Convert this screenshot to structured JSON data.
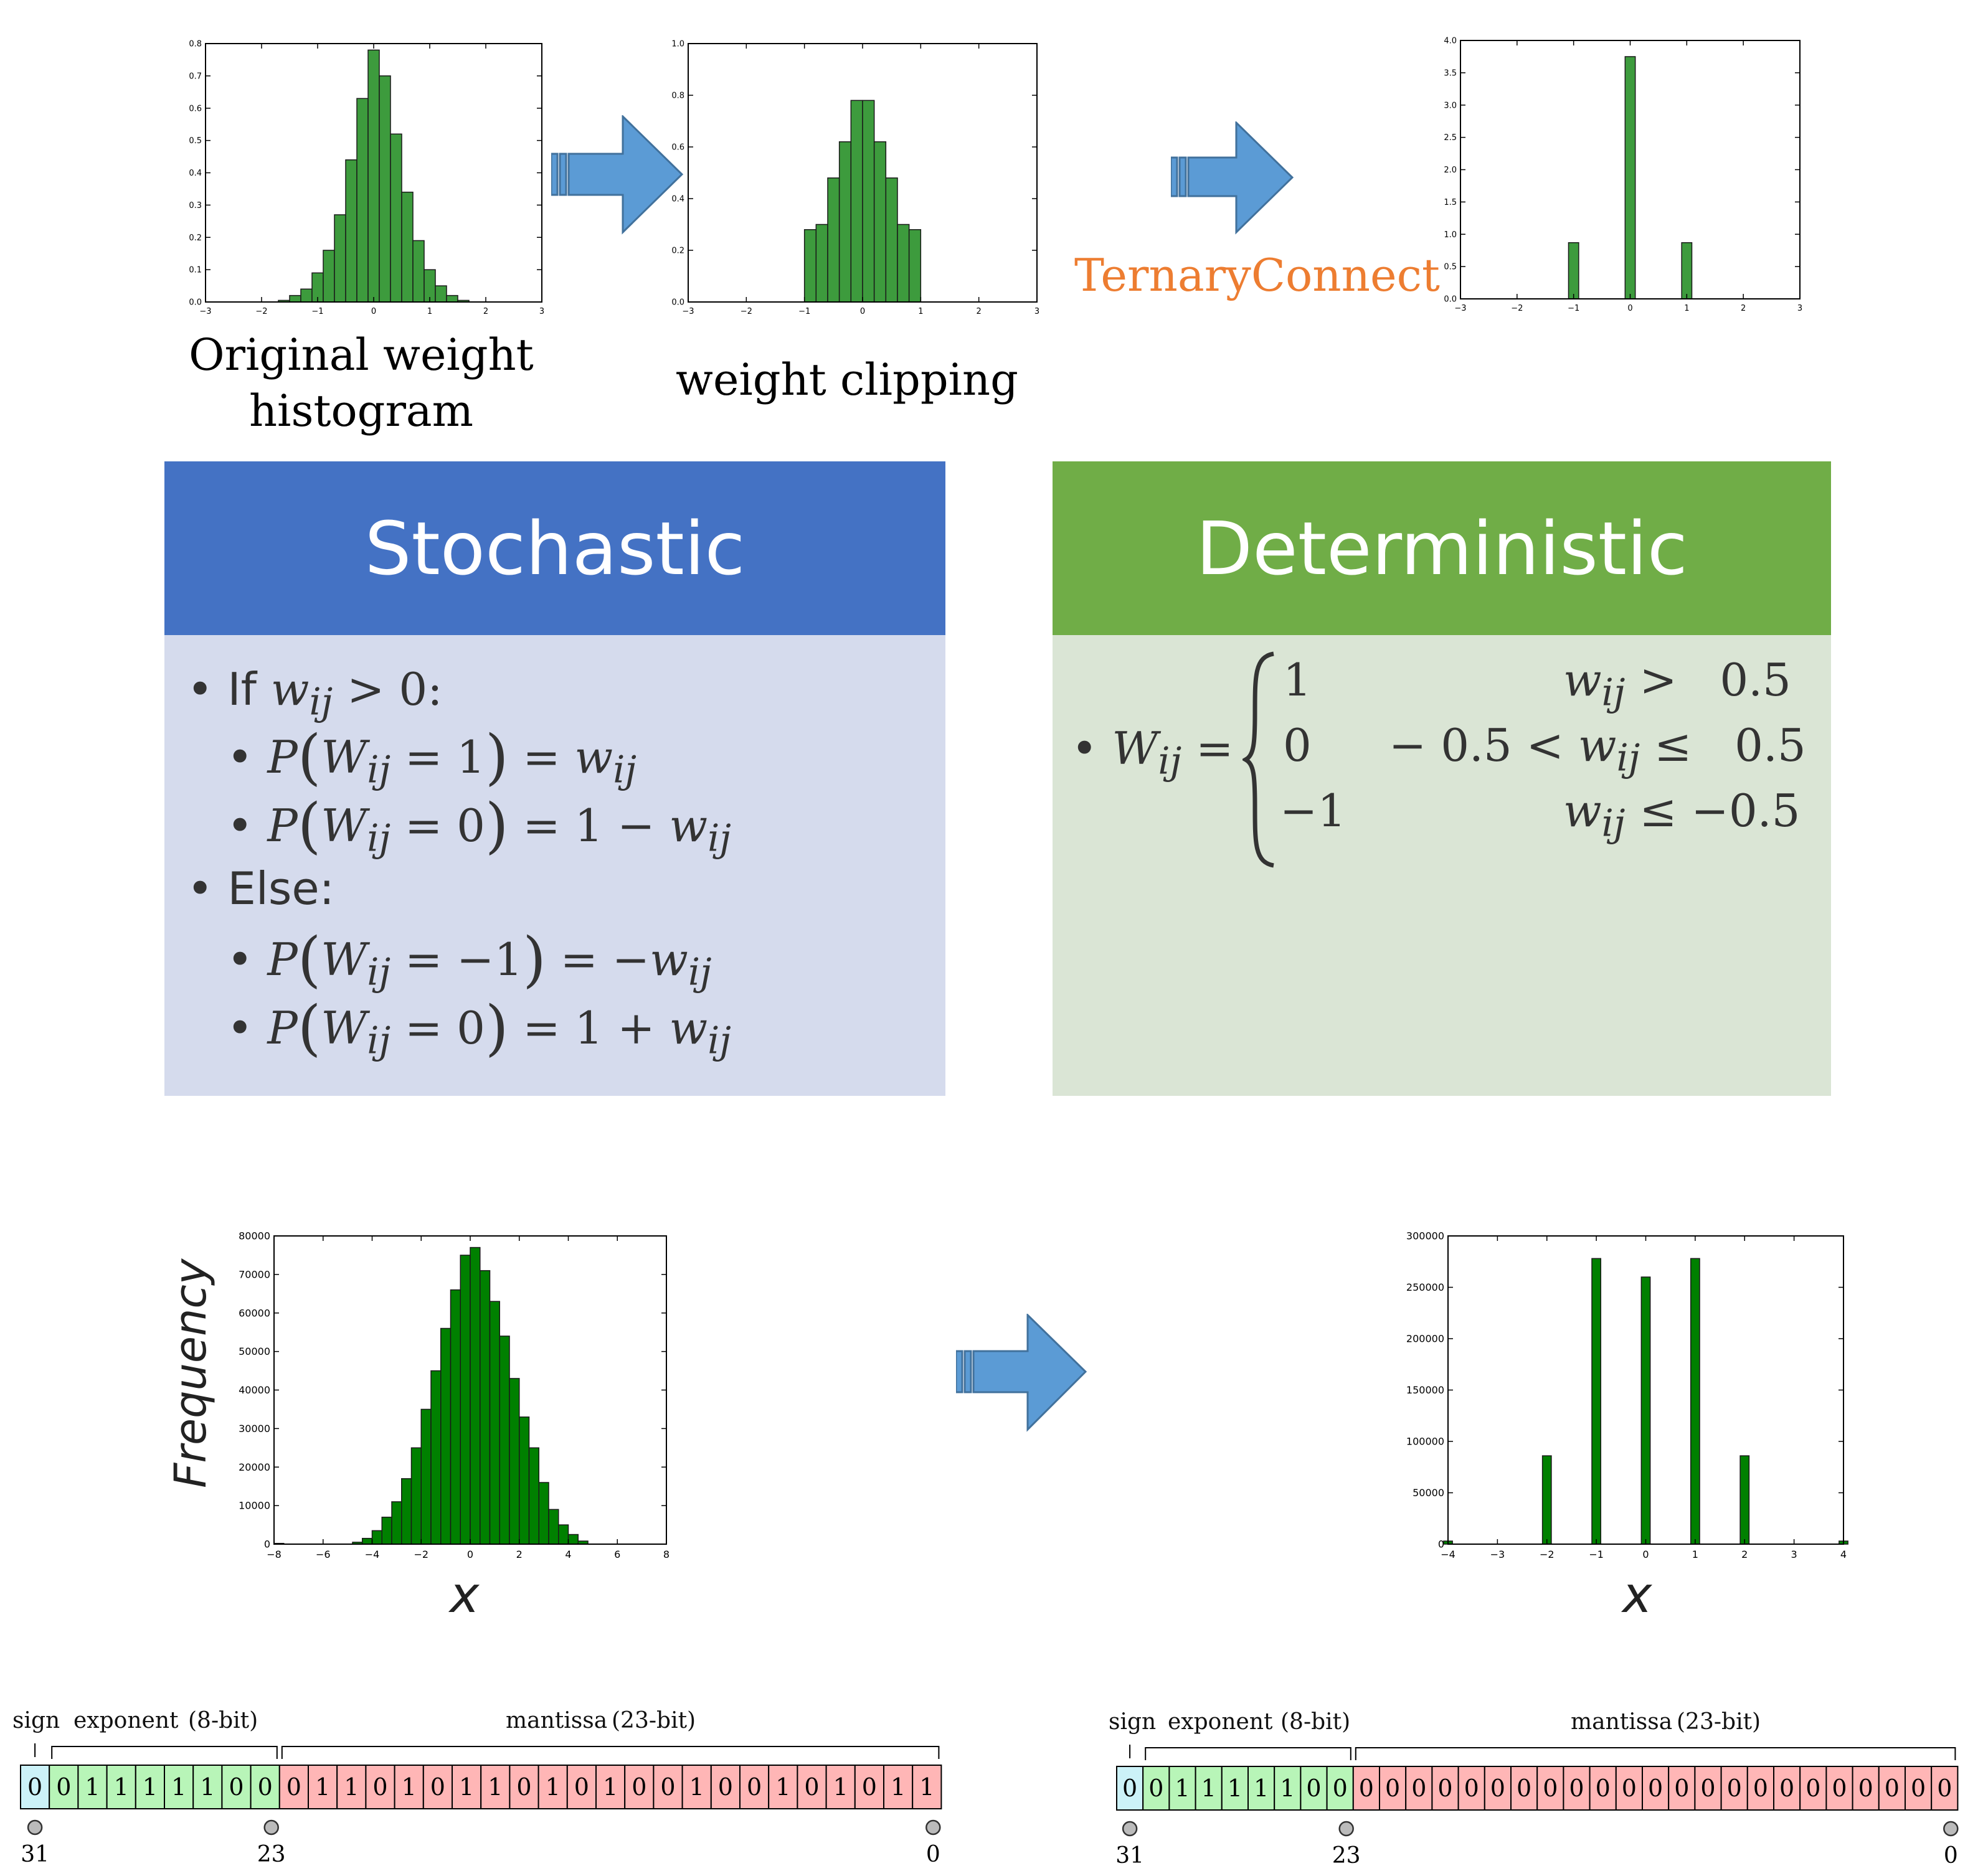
{
  "top_row": {
    "caption_original_line1": "Original weight",
    "caption_original_line2": "histogram",
    "caption_clipping": "weight clipping",
    "ternary_label": "TernaryConnect"
  },
  "stochastic": {
    "title": "Stochastic",
    "header_color": "#4472c4",
    "body_color": "#d5dbed",
    "if_text": "If",
    "if_cond": "w",
    "else_text": "Else:"
  },
  "deterministic": {
    "title": "Deterministic",
    "header_color": "#70ad47",
    "body_color": "#dae5d5",
    "cases": [
      {
        "value": "1",
        "cond": "w_ij > 0.5"
      },
      {
        "value": "0",
        "cond": "−0.5 < w_ij ≤ 0.5"
      },
      {
        "value": "−1",
        "cond": "w_ij ≤ −0.5"
      }
    ]
  },
  "bottom_row": {
    "ylabel": "Frequency",
    "xlabel_left": "x",
    "xlabel_right": "x"
  },
  "float_left": {
    "sign_label": "sign",
    "exponent_label": "exponent",
    "exponent_bits": "(8-bit)",
    "mantissa_label": "mantissa",
    "mantissa_bits": "(23-bit)",
    "bits": "00111110001101011010100100101011",
    "marker_31": "31",
    "marker_23": "23",
    "marker_0": "0"
  },
  "float_right": {
    "sign_label": "sign",
    "exponent_label": "exponent",
    "exponent_bits": "(8-bit)",
    "mantissa_label": "mantissa",
    "mantissa_bits": "(23-bit)",
    "bits": "00111110000000000000000000000000",
    "marker_31": "31",
    "marker_23": "23",
    "marker_0": "0"
  },
  "colors": {
    "bar_green_light": "#3d9b3d",
    "bar_green_dark": "#008000",
    "arrow_blue": "#5b9bd5",
    "sign_cell": "#ccf2f8",
    "exponent_cell": "#b8f5b8",
    "mantissa_cell": "#ffb6b6"
  },
  "chart_data": [
    {
      "type": "bar",
      "name": "original",
      "x": [
        -1.6,
        -1.4,
        -1.2,
        -1.0,
        -0.8,
        -0.6,
        -0.4,
        -0.2,
        0.0,
        0.2,
        0.4,
        0.6,
        0.8,
        1.0,
        1.2,
        1.4,
        1.6
      ],
      "values": [
        0.005,
        0.02,
        0.04,
        0.09,
        0.16,
        0.27,
        0.44,
        0.63,
        0.78,
        0.7,
        0.52,
        0.34,
        0.19,
        0.1,
        0.05,
        0.02,
        0.005
      ],
      "xlim": [
        -3,
        3
      ],
      "ylim": [
        0,
        0.8
      ],
      "xticks": [
        "−3",
        "−2",
        "−1",
        "0",
        "1",
        "2",
        "3"
      ],
      "yticks": [
        "0.0",
        "0.1",
        "0.2",
        "0.3",
        "0.4",
        "0.5",
        "0.6",
        "0.7",
        "0.8"
      ]
    },
    {
      "type": "bar",
      "name": "clipped",
      "x": [
        -0.9,
        -0.7,
        -0.5,
        -0.3,
        -0.1,
        0.1,
        0.3,
        0.5,
        0.7,
        0.9
      ],
      "values": [
        0.28,
        0.3,
        0.48,
        0.62,
        0.78,
        0.78,
        0.62,
        0.48,
        0.3,
        0.28
      ],
      "xlim": [
        -3,
        3
      ],
      "ylim": [
        0,
        1.0
      ],
      "xticks": [
        "−3",
        "−2",
        "−1",
        "0",
        "1",
        "2",
        "3"
      ],
      "yticks": [
        "0.0",
        "0.2",
        "0.4",
        "0.6",
        "0.8",
        "1.0"
      ]
    },
    {
      "type": "bar",
      "name": "ternary",
      "x": [
        -1,
        0,
        1
      ],
      "values": [
        0.87,
        3.75,
        0.87
      ],
      "xlim": [
        -3,
        3
      ],
      "ylim": [
        0,
        4.0
      ],
      "xticks": [
        "−3",
        "−2",
        "−1",
        "0",
        "1",
        "2",
        "3"
      ],
      "yticks": [
        "0.0",
        "0.5",
        "1.0",
        "1.5",
        "2.0",
        "2.5",
        "3.0",
        "3.5",
        "4.0"
      ]
    },
    {
      "type": "bar",
      "name": "gaussian",
      "x": [
        -7.8,
        -4.6,
        -4.2,
        -3.8,
        -3.4,
        -3.0,
        -2.6,
        -2.2,
        -1.8,
        -1.4,
        -1.0,
        -0.6,
        -0.2,
        0.2,
        0.6,
        1.0,
        1.4,
        1.8,
        2.2,
        2.6,
        3.0,
        3.4,
        3.8,
        4.2,
        4.6
      ],
      "values": [
        200,
        500,
        1500,
        3500,
        7000,
        11000,
        17000,
        25000,
        35000,
        45000,
        56000,
        66000,
        75000,
        77000,
        71000,
        63000,
        54000,
        43000,
        33000,
        25000,
        16000,
        9000,
        5000,
        2500,
        800
      ],
      "xlim": [
        -8,
        8
      ],
      "ylim": [
        0,
        80000
      ],
      "xticks": [
        "−8",
        "−6",
        "−4",
        "−2",
        "0",
        "2",
        "4",
        "6",
        "8"
      ],
      "yticks": [
        "0",
        "10000",
        "20000",
        "30000",
        "40000",
        "50000",
        "60000",
        "70000",
        "80000"
      ]
    },
    {
      "type": "bar",
      "name": "quantized",
      "x": [
        -4,
        -2,
        -1,
        0,
        1,
        2,
        4
      ],
      "values": [
        3000,
        86000,
        278000,
        260000,
        278000,
        86000,
        3000
      ],
      "xlim": [
        -4,
        4
      ],
      "ylim": [
        0,
        300000
      ],
      "xticks": [
        "−4",
        "−3",
        "−2",
        "−1",
        "0",
        "1",
        "2",
        "3",
        "4"
      ],
      "yticks": [
        "0",
        "50000",
        "100000",
        "150000",
        "200000",
        "250000",
        "300000"
      ]
    }
  ]
}
